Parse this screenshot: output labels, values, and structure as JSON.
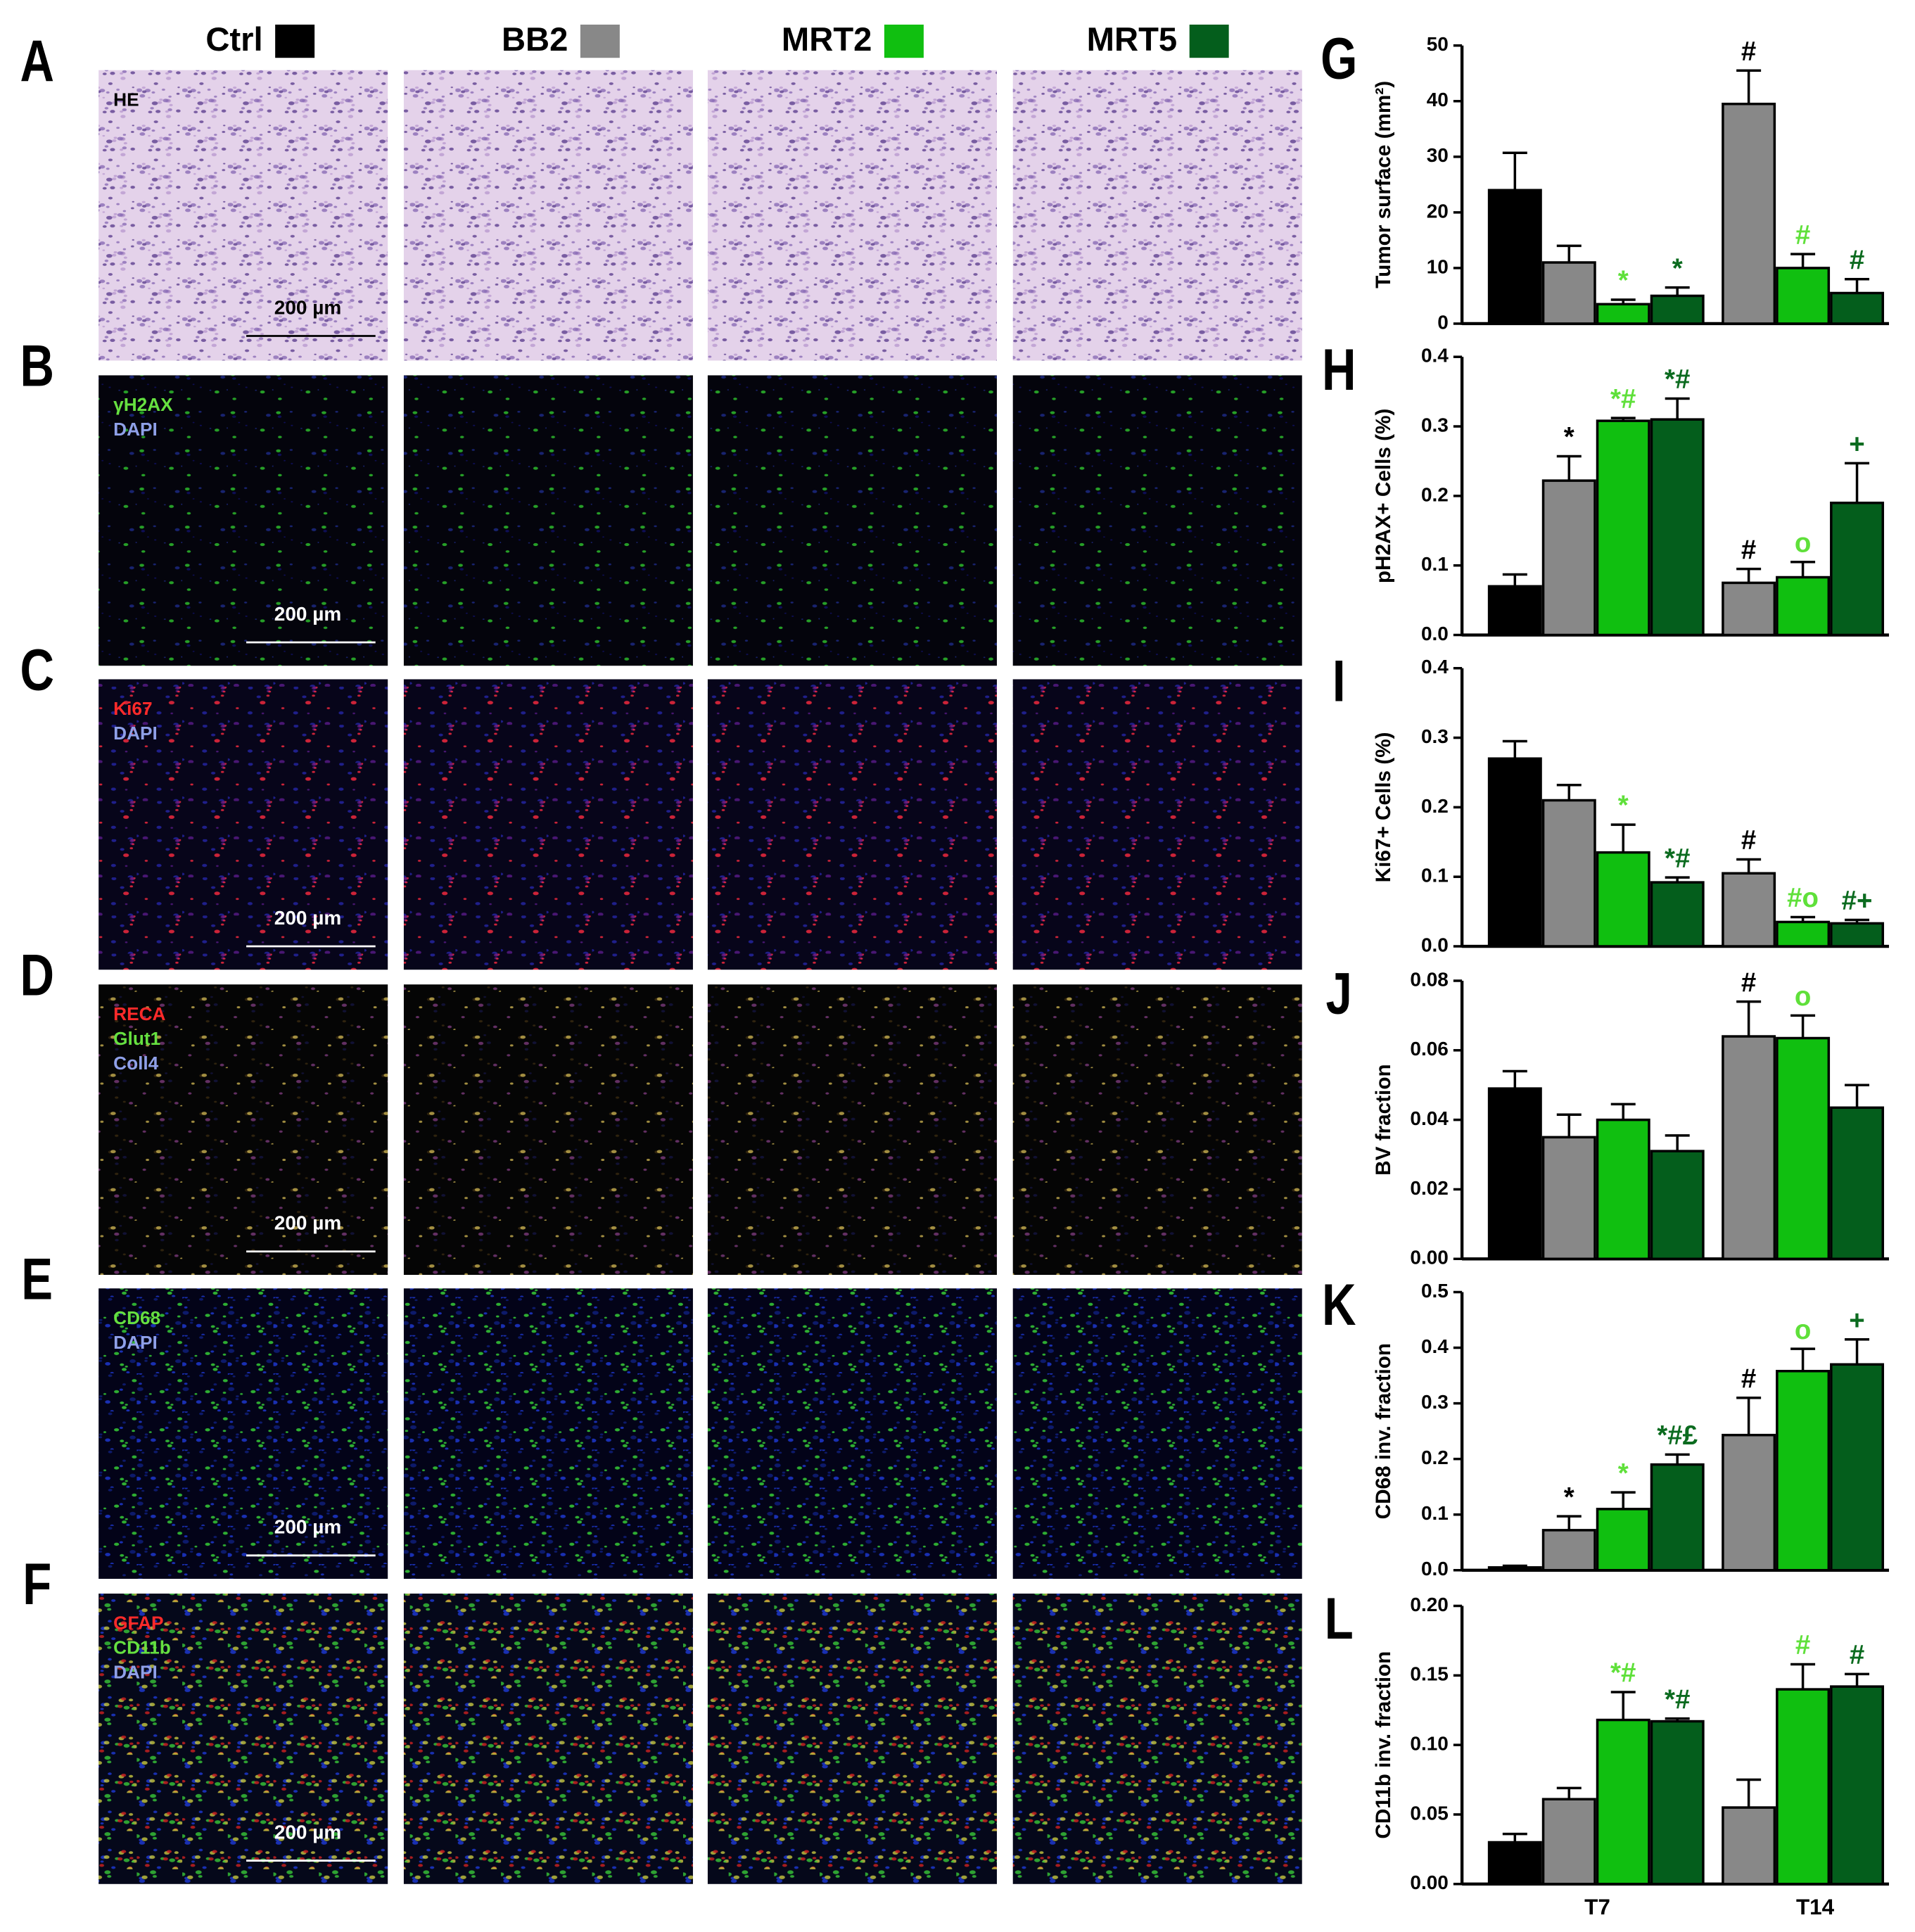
{
  "legend": [
    {
      "name": "Ctrl",
      "color": "#000000",
      "mark_color": "#000000"
    },
    {
      "name": "BB2",
      "color": "#888888",
      "mark_color": "#000000"
    },
    {
      "name": "MRT2",
      "color": "#10bf10",
      "mark_color": "#5fe03a"
    },
    {
      "name": "MRT5",
      "color": "#045e1c",
      "mark_color": "#0b6b1f"
    }
  ],
  "image_rows": [
    {
      "label": "A",
      "stains": [
        {
          "text": "HE",
          "color": "#000000"
        }
      ],
      "scale_bar": "200 µm"
    },
    {
      "label": "B",
      "stains": [
        {
          "text": "γH2AX",
          "color": "#66e040"
        },
        {
          "text": "DAPI",
          "color": "#8fa0e8"
        }
      ],
      "scale_bar": "200 µm"
    },
    {
      "label": "C",
      "stains": [
        {
          "text": "Ki67",
          "color": "#ff2a2a"
        },
        {
          "text": "DAPI",
          "color": "#8fa0e8"
        }
      ],
      "scale_bar": "200 µm"
    },
    {
      "label": "D",
      "stains": [
        {
          "text": "RECA",
          "color": "#ff2a2a"
        },
        {
          "text": "Glut1",
          "color": "#66e040"
        },
        {
          "text": "Coll4",
          "color": "#8fa0e8"
        }
      ],
      "scale_bar": "200 µm"
    },
    {
      "label": "E",
      "stains": [
        {
          "text": "CD68",
          "color": "#66e040"
        },
        {
          "text": "DAPI",
          "color": "#8fa0e8"
        }
      ],
      "scale_bar": "200 µm"
    },
    {
      "label": "F",
      "stains": [
        {
          "text": "GFAP",
          "color": "#ff2a2a"
        },
        {
          "text": "CD11b",
          "color": "#66e040"
        },
        {
          "text": "DAPI",
          "color": "#8fa0e8"
        }
      ],
      "scale_bar": "200 µm"
    }
  ],
  "chart_data": [
    {
      "type": "bar",
      "label": "G",
      "ylabel": "Tumor surface (mm²)",
      "ylim": [
        0,
        50
      ],
      "yticks": [
        0,
        10,
        20,
        30,
        40,
        50
      ],
      "series": [
        {
          "values": [
            24,
            null
          ],
          "errors": [
            6.7,
            null
          ],
          "annotations": [
            null,
            null
          ]
        },
        {
          "values": [
            11,
            39.5
          ],
          "errors": [
            3,
            6
          ],
          "annotations": [
            null,
            "#"
          ]
        },
        {
          "values": [
            3.5,
            10
          ],
          "errors": [
            0.8,
            2.5
          ],
          "annotations": [
            "*",
            "#"
          ]
        },
        {
          "values": [
            5,
            5.5
          ],
          "errors": [
            1.5,
            2.5
          ],
          "annotations": [
            "*",
            "#"
          ]
        }
      ]
    },
    {
      "type": "bar",
      "label": "H",
      "ylabel": "pH2AX+ Cells (%)",
      "ylim": [
        0,
        0.4
      ],
      "yticks": [
        {
          "value": 0,
          "label": "0.0"
        },
        0.1,
        0.2,
        0.3,
        0.4
      ],
      "series": [
        {
          "values": [
            0.07,
            null
          ],
          "errors": [
            0.017,
            null
          ],
          "annotations": [
            null,
            null
          ]
        },
        {
          "values": [
            0.222,
            0.075
          ],
          "errors": [
            0.035,
            0.02
          ],
          "annotations": [
            "*",
            "#"
          ]
        },
        {
          "values": [
            0.308,
            0.083
          ],
          "errors": [
            0.004,
            0.022
          ],
          "annotations": [
            "*#",
            "o"
          ]
        },
        {
          "values": [
            0.31,
            0.19
          ],
          "errors": [
            0.03,
            0.057
          ],
          "annotations": [
            "*#",
            "+"
          ]
        }
      ]
    },
    {
      "type": "bar",
      "label": "I",
      "ylabel": "Ki67+ Cells (%)",
      "ylim": [
        0,
        0.4
      ],
      "yticks": [
        {
          "value": 0,
          "label": "0.0"
        },
        0.1,
        0.2,
        0.3,
        0.4
      ],
      "series": [
        {
          "values": [
            0.27,
            null
          ],
          "errors": [
            0.025,
            null
          ],
          "annotations": [
            null,
            null
          ]
        },
        {
          "values": [
            0.21,
            0.105
          ],
          "errors": [
            0.022,
            0.02
          ],
          "annotations": [
            null,
            "#"
          ]
        },
        {
          "values": [
            0.135,
            0.035
          ],
          "errors": [
            0.04,
            0.007
          ],
          "annotations": [
            "*",
            "#o"
          ]
        },
        {
          "values": [
            0.092,
            0.033
          ],
          "errors": [
            0.007,
            0.005
          ],
          "annotations": [
            "*#",
            "#+"
          ]
        }
      ]
    },
    {
      "type": "bar",
      "label": "J",
      "ylabel": "BV fraction",
      "ylim": [
        0,
        0.08
      ],
      "yticks": [
        {
          "value": 0,
          "label": "0.00"
        },
        0.02,
        0.04,
        0.06,
        0.08
      ],
      "series": [
        {
          "values": [
            0.049,
            null
          ],
          "errors": [
            0.005,
            null
          ],
          "annotations": [
            null,
            null
          ]
        },
        {
          "values": [
            0.035,
            0.064
          ],
          "errors": [
            0.0065,
            0.01
          ],
          "annotations": [
            null,
            "#"
          ]
        },
        {
          "values": [
            0.04,
            0.0635
          ],
          "errors": [
            0.0045,
            0.0065
          ],
          "annotations": [
            null,
            "o"
          ]
        },
        {
          "values": [
            0.031,
            0.0435
          ],
          "errors": [
            0.0045,
            0.0065
          ],
          "annotations": [
            null,
            null
          ]
        }
      ]
    },
    {
      "type": "bar",
      "label": "K",
      "ylabel": "CD68 inv. fraction",
      "ylim": [
        0,
        0.5
      ],
      "yticks": [
        {
          "value": 0,
          "label": "0.0"
        },
        0.1,
        0.2,
        0.3,
        0.4,
        0.5
      ],
      "series": [
        {
          "values": [
            0.005,
            null
          ],
          "errors": [
            0.003,
            null
          ],
          "annotations": [
            null,
            null
          ]
        },
        {
          "values": [
            0.072,
            0.243
          ],
          "errors": [
            0.025,
            0.067
          ],
          "annotations": [
            "*",
            "#"
          ]
        },
        {
          "values": [
            0.11,
            0.358
          ],
          "errors": [
            0.03,
            0.04
          ],
          "annotations": [
            "*",
            "o"
          ]
        },
        {
          "values": [
            0.19,
            0.37
          ],
          "errors": [
            0.018,
            0.045
          ],
          "annotations": [
            "*#£",
            "+"
          ]
        }
      ]
    },
    {
      "type": "bar",
      "label": "L",
      "ylabel": "CD11b inv. fraction",
      "ylim": [
        0,
        0.2
      ],
      "yticks": [
        {
          "value": 0,
          "label": "0.00"
        },
        0.05,
        {
          "value": 0.1,
          "label": "0.10"
        },
        0.15,
        {
          "value": 0.2,
          "label": "0.20"
        }
      ],
      "categories": [
        "T7",
        "T14"
      ],
      "series": [
        {
          "values": [
            0.03,
            null
          ],
          "errors": [
            0.006,
            null
          ],
          "annotations": [
            null,
            null
          ]
        },
        {
          "values": [
            0.061,
            0.055
          ],
          "errors": [
            0.008,
            0.02
          ],
          "annotations": [
            null,
            null
          ]
        },
        {
          "values": [
            0.118,
            0.14
          ],
          "errors": [
            0.02,
            0.018
          ],
          "annotations": [
            "*#",
            "#"
          ]
        },
        {
          "values": [
            0.117,
            0.142
          ],
          "errors": [
            0.002,
            0.009
          ],
          "annotations": [
            "*#",
            "#"
          ]
        }
      ]
    }
  ]
}
